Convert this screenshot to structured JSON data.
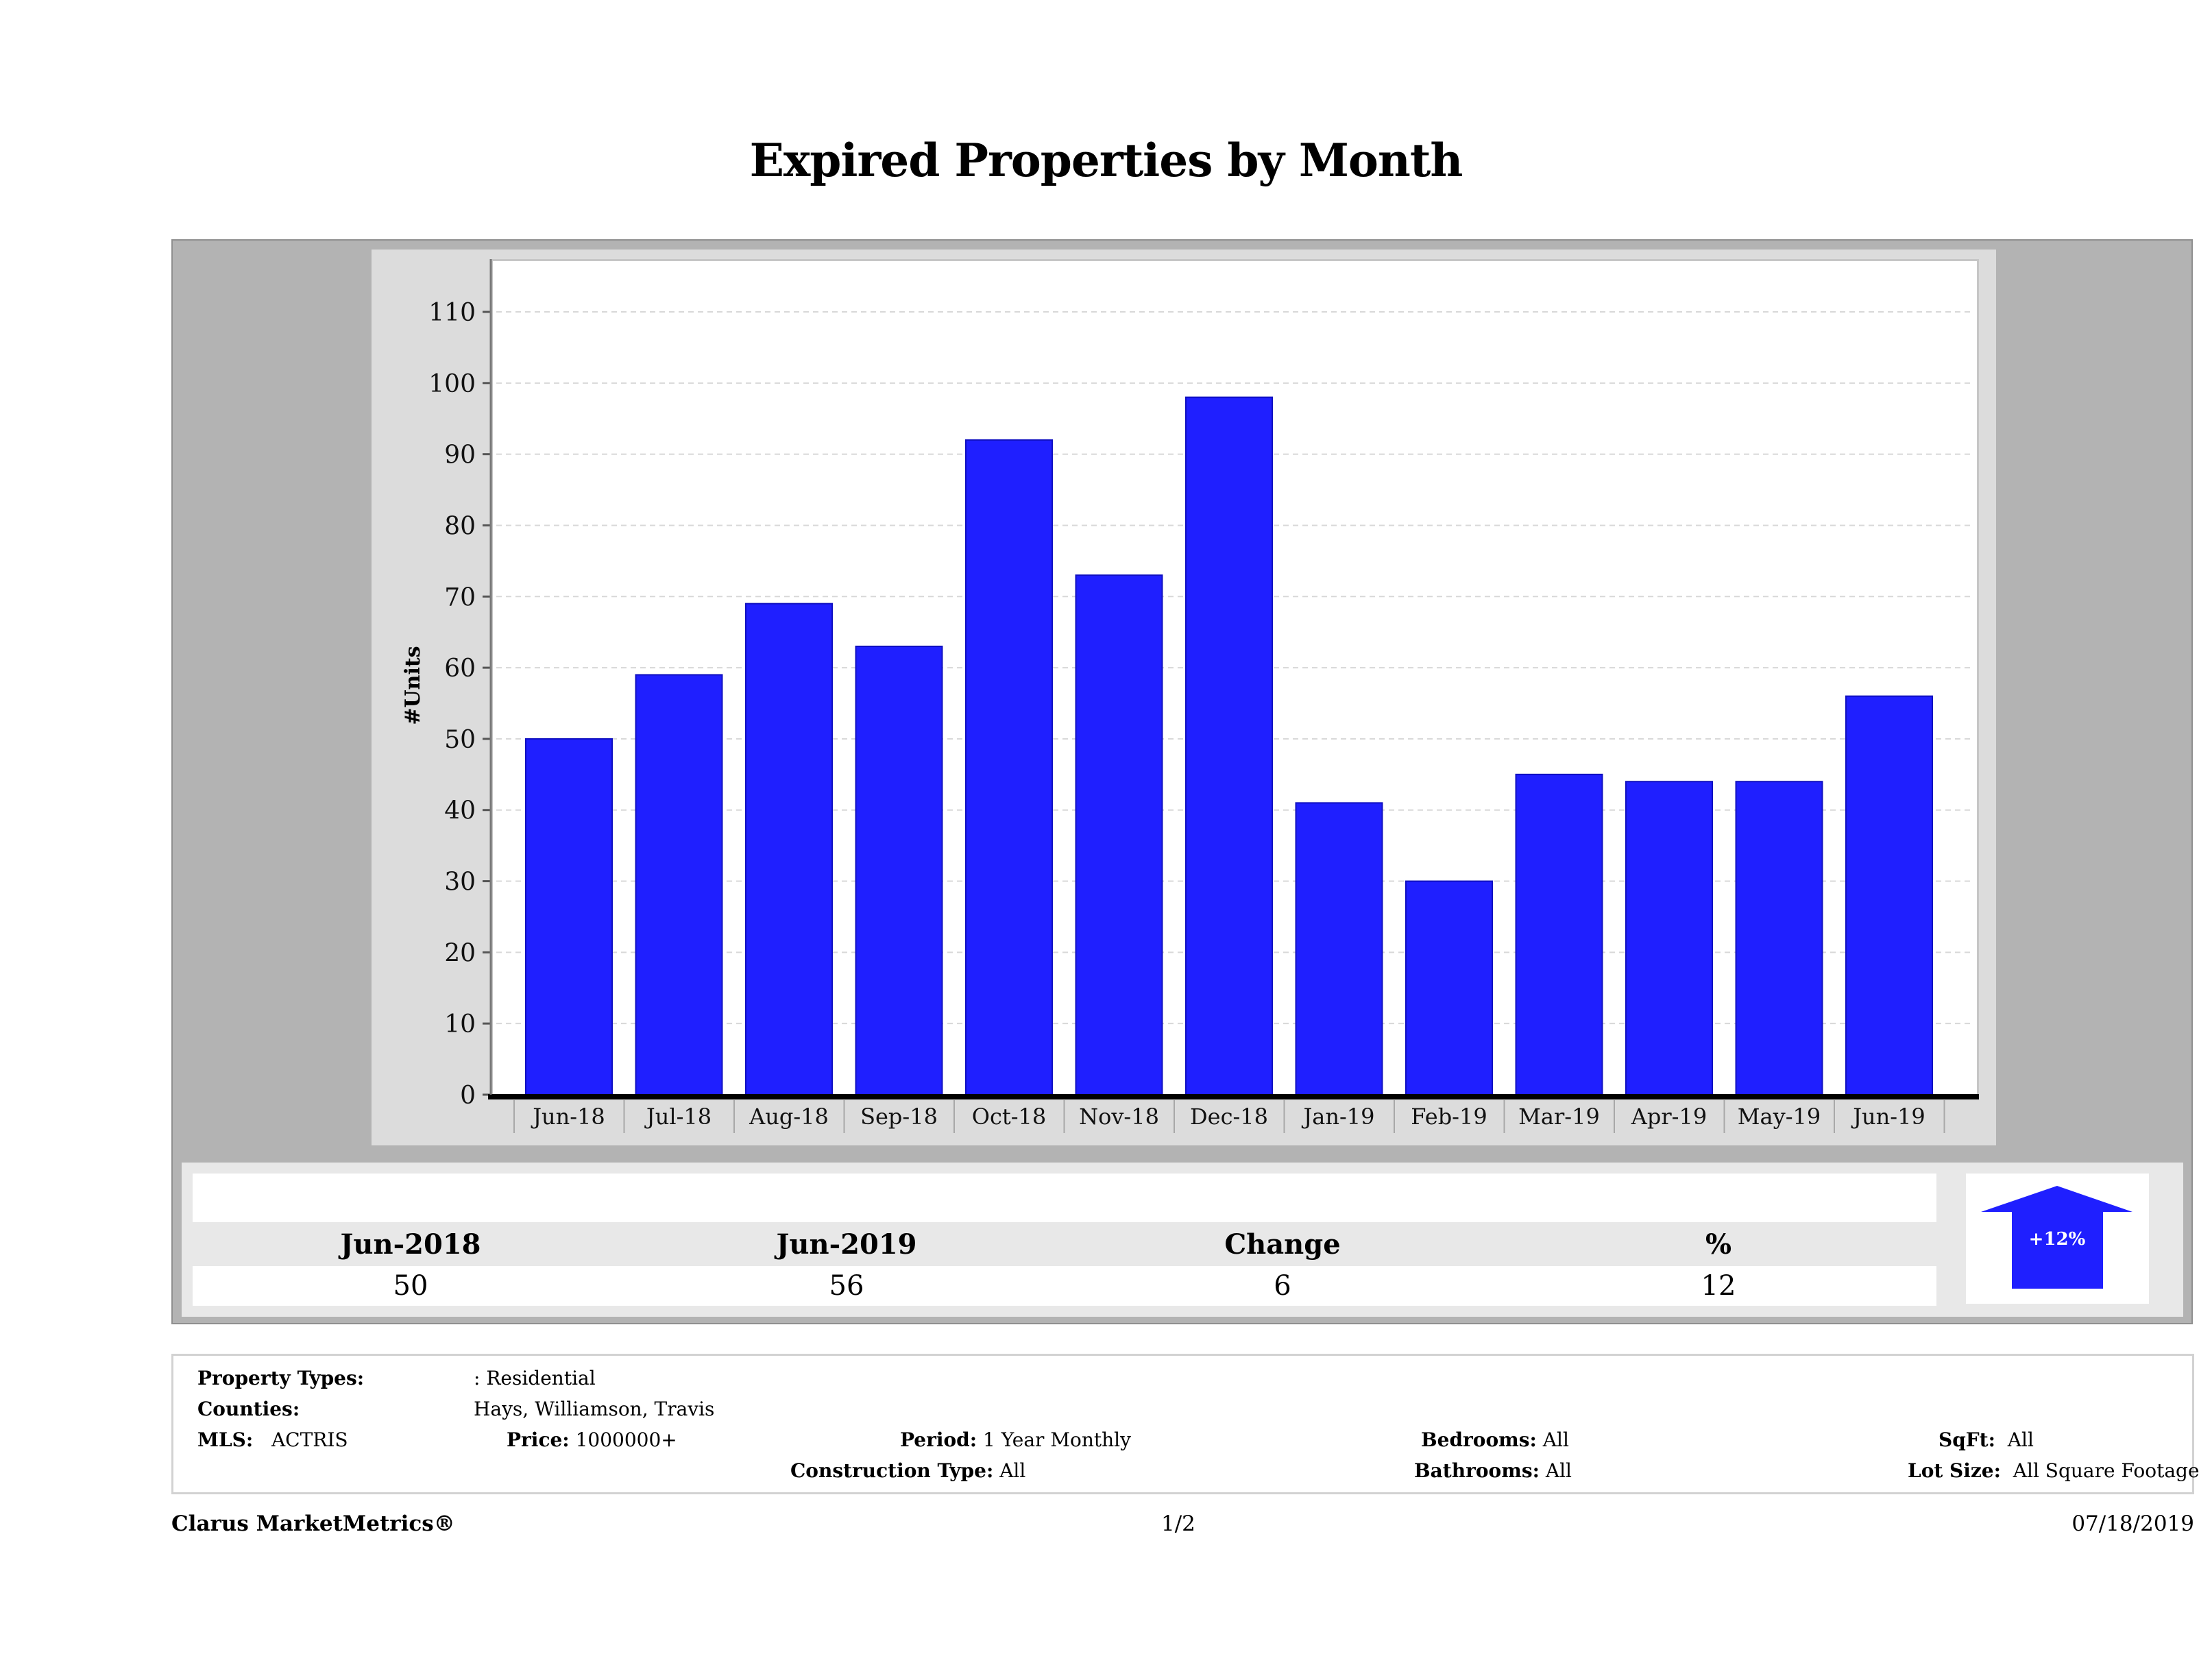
{
  "title": "Expired Properties by Month",
  "chart_data": {
    "type": "bar",
    "title": "Expired Properties by Month",
    "xlabel": "",
    "ylabel": "#Units",
    "categories": [
      "Jun-18",
      "Jul-18",
      "Aug-18",
      "Sep-18",
      "Oct-18",
      "Nov-18",
      "Dec-18",
      "Jan-19",
      "Feb-19",
      "Mar-19",
      "Apr-19",
      "May-19",
      "Jun-19"
    ],
    "values": [
      50,
      59,
      69,
      63,
      92,
      73,
      98,
      41,
      30,
      45,
      44,
      44,
      56
    ],
    "ylim": [
      0,
      117
    ],
    "yticks": [
      0,
      10,
      20,
      30,
      40,
      50,
      60,
      70,
      80,
      90,
      100,
      110
    ],
    "grid": true,
    "bar_color": "#1f1fff"
  },
  "summary": {
    "headers": [
      "Jun-2018",
      "Jun-2019",
      "Change",
      "%"
    ],
    "values": [
      "50",
      "56",
      "6",
      "12"
    ],
    "badge": "+12%",
    "badge_color": "#1f1fff",
    "direction": "up"
  },
  "criteria": {
    "property_types_label": "Property Types:",
    "property_types_value": ": Residential",
    "counties_label": "Counties:",
    "counties_value": "Hays, Williamson, Travis",
    "mls_label": "MLS:",
    "mls_value": "ACTRIS",
    "price_label": "Price:",
    "price_value": "1000000+",
    "period_label": "Period:",
    "period_value": "1 Year Monthly",
    "construction_label": "Construction Type:",
    "construction_value": "All",
    "bedrooms_label": "Bedrooms:",
    "bedrooms_value": "All",
    "bathrooms_label": "Bathrooms:",
    "bathrooms_value": "All",
    "sqft_label": "SqFt:",
    "sqft_value": "All",
    "lotsize_label": "Lot Size:",
    "lotsize_value": "All Square Footage"
  },
  "footer": {
    "brand": "Clarus MarketMetrics®",
    "page": "1/2",
    "date": "07/18/2019"
  }
}
